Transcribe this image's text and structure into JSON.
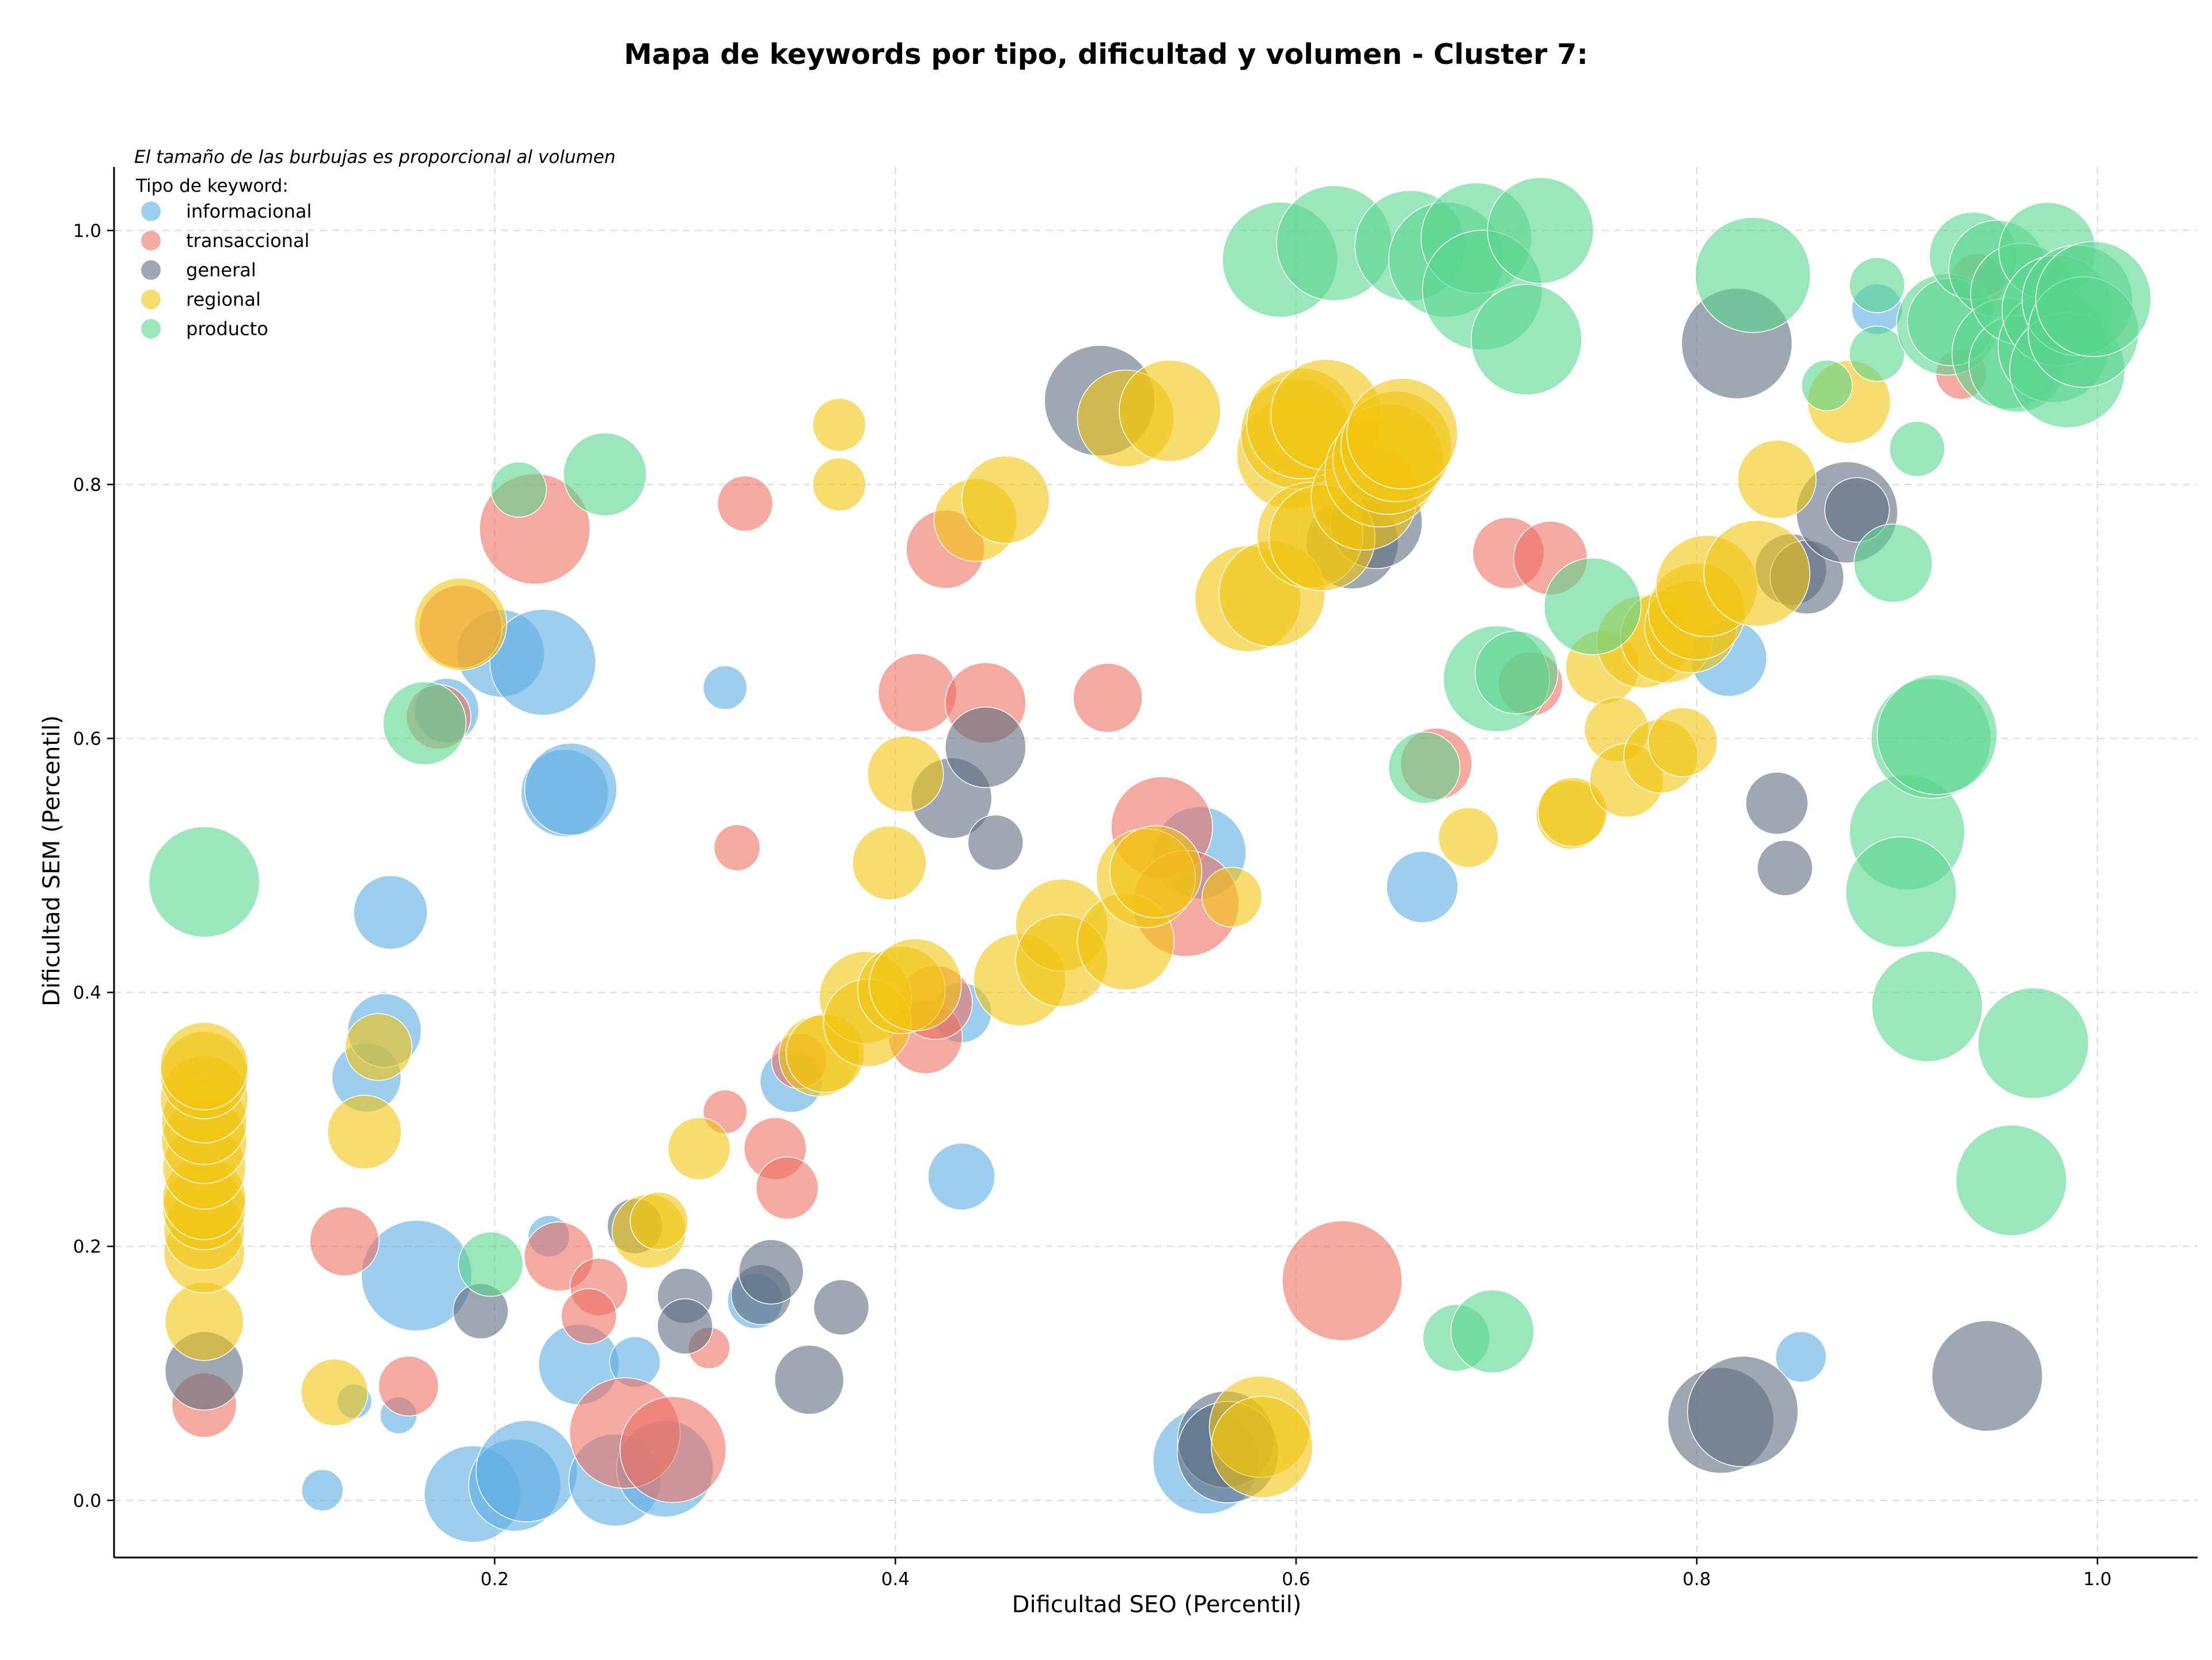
{
  "colors": {
    "informacional": "#5dade2",
    "transaccional": "#ec7063",
    "general": "#5d6d7e",
    "regional": "#f1c40f",
    "producto": "#58d68d"
  },
  "legend": {
    "note": "El tamaño de las burbujas es proporcional al volumen",
    "heading": "Tipo de keyword:",
    "items": [
      "informacional",
      "transaccional",
      "general",
      "regional",
      "producto"
    ]
  },
  "chart_data": {
    "type": "scatter",
    "bubble": true,
    "title": "Mapa de keywords por tipo, dificultad y volumen - Cluster 7:",
    "xlabel": "Dificultad SEO (Percentil)",
    "ylabel": "Dificultad SEM (Percentil)",
    "xlim": [
      0.01,
      1.05
    ],
    "ylim": [
      -0.045,
      1.05
    ],
    "xticks": [
      "0.2",
      "0.4",
      "0.6",
      "0.8",
      "1.0"
    ],
    "yticks": [
      "0.0",
      "0.2",
      "0.4",
      "0.6",
      "0.8",
      "1.0"
    ],
    "grid": true,
    "legend_position": "top-left",
    "size_note": "bubble size proportional to volume",
    "series": [
      {
        "name": "informacional",
        "points": [
          [
            0.114,
            0.008,
            18
          ],
          [
            0.13,
            0.078,
            15
          ],
          [
            0.152,
            0.067,
            16
          ],
          [
            0.161,
            0.177,
            48
          ],
          [
            0.148,
            0.463,
            32
          ],
          [
            0.136,
            0.333,
            30
          ],
          [
            0.145,
            0.37,
            32
          ],
          [
            0.176,
            0.622,
            28
          ],
          [
            0.203,
            0.667,
            38
          ],
          [
            0.224,
            0.66,
            46
          ],
          [
            0.235,
            0.557,
            38
          ],
          [
            0.238,
            0.56,
            40
          ],
          [
            0.189,
            0.005,
            42
          ],
          [
            0.21,
            0.012,
            40
          ],
          [
            0.216,
            0.023,
            44
          ],
          [
            0.227,
            0.208,
            18
          ],
          [
            0.242,
            0.107,
            35
          ],
          [
            0.26,
            0.016,
            40
          ],
          [
            0.27,
            0.109,
            22
          ],
          [
            0.285,
            0.025,
            42
          ],
          [
            0.315,
            0.64,
            19
          ],
          [
            0.33,
            0.157,
            24
          ],
          [
            0.348,
            0.33,
            27
          ],
          [
            0.433,
            0.384,
            26
          ],
          [
            0.433,
            0.255,
            29
          ],
          [
            0.552,
            0.51,
            40
          ],
          [
            0.555,
            0.031,
            46
          ],
          [
            0.663,
            0.483,
            31
          ],
          [
            0.816,
            0.663,
            33
          ],
          [
            0.852,
            0.113,
            22
          ],
          [
            0.89,
            0.938,
            22
          ]
        ]
      },
      {
        "name": "transaccional",
        "points": [
          [
            0.055,
            0.075,
            28
          ],
          [
            0.125,
            0.204,
            30
          ],
          [
            0.157,
            0.09,
            26
          ],
          [
            0.172,
            0.617,
            28
          ],
          [
            0.183,
            0.688,
            36
          ],
          [
            0.22,
            0.765,
            48
          ],
          [
            0.232,
            0.192,
            30
          ],
          [
            0.252,
            0.168,
            25
          ],
          [
            0.247,
            0.145,
            24
          ],
          [
            0.265,
            0.053,
            48
          ],
          [
            0.289,
            0.04,
            46
          ],
          [
            0.307,
            0.12,
            18
          ],
          [
            0.315,
            0.306,
            19
          ],
          [
            0.321,
            0.514,
            20
          ],
          [
            0.325,
            0.785,
            24
          ],
          [
            0.34,
            0.277,
            27
          ],
          [
            0.346,
            0.246,
            27
          ],
          [
            0.352,
            0.346,
            24
          ],
          [
            0.411,
            0.636,
            34
          ],
          [
            0.415,
            0.365,
            32
          ],
          [
            0.42,
            0.392,
            32
          ],
          [
            0.425,
            0.749,
            34
          ],
          [
            0.445,
            0.628,
            35
          ],
          [
            0.506,
            0.632,
            30
          ],
          [
            0.533,
            0.53,
            44
          ],
          [
            0.545,
            0.47,
            46
          ],
          [
            0.623,
            0.173,
            52
          ],
          [
            0.67,
            0.58,
            31
          ],
          [
            0.706,
            0.746,
            31
          ],
          [
            0.717,
            0.643,
            28
          ],
          [
            0.727,
            0.742,
            32
          ],
          [
            0.932,
            0.887,
            22
          ],
          [
            0.94,
            0.96,
            24
          ]
        ]
      },
      {
        "name": "general",
        "points": [
          [
            0.055,
            0.102,
            34
          ],
          [
            0.193,
            0.149,
            24
          ],
          [
            0.27,
            0.216,
            24
          ],
          [
            0.295,
            0.161,
            24
          ],
          [
            0.295,
            0.137,
            24
          ],
          [
            0.333,
            0.162,
            26
          ],
          [
            0.338,
            0.18,
            28
          ],
          [
            0.357,
            0.095,
            30
          ],
          [
            0.373,
            0.152,
            24
          ],
          [
            0.428,
            0.553,
            35
          ],
          [
            0.445,
            0.593,
            35
          ],
          [
            0.45,
            0.518,
            24
          ],
          [
            0.502,
            0.866,
            48
          ],
          [
            0.565,
            0.048,
            42
          ],
          [
            0.566,
            0.038,
            44
          ],
          [
            0.628,
            0.754,
            40
          ],
          [
            0.64,
            0.77,
            40
          ],
          [
            0.812,
            0.063,
            46
          ],
          [
            0.823,
            0.07,
            48
          ],
          [
            0.82,
            0.911,
            48
          ],
          [
            0.84,
            0.549,
            27
          ],
          [
            0.844,
            0.498,
            24
          ],
          [
            0.847,
            0.733,
            31
          ],
          [
            0.855,
            0.727,
            32
          ],
          [
            0.875,
            0.778,
            44
          ],
          [
            0.88,
            0.78,
            28
          ],
          [
            0.945,
            0.098,
            48
          ]
        ]
      },
      {
        "name": "regional",
        "points": [
          [
            0.055,
            0.141,
            34
          ],
          [
            0.055,
            0.195,
            35
          ],
          [
            0.055,
            0.213,
            35
          ],
          [
            0.055,
            0.23,
            36
          ],
          [
            0.055,
            0.238,
            36
          ],
          [
            0.055,
            0.262,
            36
          ],
          [
            0.055,
            0.283,
            37
          ],
          [
            0.055,
            0.298,
            37
          ],
          [
            0.055,
            0.316,
            38
          ],
          [
            0.055,
            0.335,
            38
          ],
          [
            0.055,
            0.342,
            38
          ],
          [
            0.12,
            0.085,
            29
          ],
          [
            0.135,
            0.29,
            32
          ],
          [
            0.142,
            0.357,
            29
          ],
          [
            0.183,
            0.69,
            40
          ],
          [
            0.277,
            0.212,
            32
          ],
          [
            0.282,
            0.22,
            25
          ],
          [
            0.302,
            0.277,
            27
          ],
          [
            0.362,
            0.35,
            35
          ],
          [
            0.365,
            0.352,
            34
          ],
          [
            0.372,
            0.847,
            23
          ],
          [
            0.372,
            0.8,
            23
          ],
          [
            0.385,
            0.396,
            40
          ],
          [
            0.386,
            0.376,
            38
          ],
          [
            0.397,
            0.502,
            32
          ],
          [
            0.405,
            0.572,
            33
          ],
          [
            0.403,
            0.402,
            38
          ],
          [
            0.41,
            0.406,
            40
          ],
          [
            0.44,
            0.772,
            36
          ],
          [
            0.455,
            0.788,
            38
          ],
          [
            0.462,
            0.41,
            40
          ],
          [
            0.483,
            0.453,
            40
          ],
          [
            0.483,
            0.425,
            40
          ],
          [
            0.515,
            0.852,
            42
          ],
          [
            0.515,
            0.44,
            42
          ],
          [
            0.525,
            0.49,
            43
          ],
          [
            0.53,
            0.495,
            40
          ],
          [
            0.537,
            0.858,
            44
          ],
          [
            0.568,
            0.475,
            26
          ],
          [
            0.576,
            0.71,
            46
          ],
          [
            0.588,
            0.714,
            46
          ],
          [
            0.582,
            0.058,
            44
          ],
          [
            0.583,
            0.042,
            44
          ],
          [
            0.598,
            0.824,
            48
          ],
          [
            0.6,
            0.84,
            48
          ],
          [
            0.603,
            0.848,
            48
          ],
          [
            0.615,
            0.855,
            48
          ],
          [
            0.607,
            0.76,
            46
          ],
          [
            0.613,
            0.758,
            46
          ],
          [
            0.634,
            0.79,
            46
          ],
          [
            0.642,
            0.81,
            48
          ],
          [
            0.646,
            0.82,
            48
          ],
          [
            0.65,
            0.83,
            48
          ],
          [
            0.653,
            0.84,
            48
          ],
          [
            0.686,
            0.522,
            26
          ],
          [
            0.737,
            0.54,
            30
          ],
          [
            0.738,
            0.542,
            30
          ],
          [
            0.753,
            0.656,
            32
          ],
          [
            0.76,
            0.607,
            28
          ],
          [
            0.765,
            0.567,
            32
          ],
          [
            0.773,
            0.676,
            40
          ],
          [
            0.785,
            0.68,
            40
          ],
          [
            0.782,
            0.586,
            32
          ],
          [
            0.793,
            0.597,
            30
          ],
          [
            0.797,
            0.688,
            40
          ],
          [
            0.8,
            0.7,
            42
          ],
          [
            0.805,
            0.72,
            44
          ],
          [
            0.83,
            0.73,
            46
          ],
          [
            0.84,
            0.804,
            34
          ],
          [
            0.876,
            0.865,
            36
          ]
        ]
      },
      {
        "name": "producto",
        "points": [
          [
            0.055,
            0.487,
            48
          ],
          [
            0.165,
            0.612,
            36
          ],
          [
            0.198,
            0.186,
            28
          ],
          [
            0.212,
            0.796,
            24
          ],
          [
            0.255,
            0.808,
            36
          ],
          [
            0.592,
            0.977,
            50
          ],
          [
            0.619,
            0.99,
            50
          ],
          [
            0.657,
            0.988,
            48
          ],
          [
            0.675,
            0.977,
            50
          ],
          [
            0.69,
            0.994,
            48
          ],
          [
            0.693,
            0.953,
            52
          ],
          [
            0.722,
            1.0,
            46
          ],
          [
            0.715,
            0.914,
            48
          ],
          [
            0.7,
            0.647,
            46
          ],
          [
            0.71,
            0.652,
            36
          ],
          [
            0.748,
            0.704,
            42
          ],
          [
            0.664,
            0.577,
            31
          ],
          [
            0.68,
            0.128,
            29
          ],
          [
            0.698,
            0.133,
            36
          ],
          [
            0.828,
            0.965,
            50
          ],
          [
            0.865,
            0.878,
            22
          ],
          [
            0.89,
            0.957,
            24
          ],
          [
            0.89,
            0.903,
            24
          ],
          [
            0.898,
            0.738,
            34
          ],
          [
            0.91,
            0.828,
            24
          ],
          [
            0.905,
            0.526,
            50
          ],
          [
            0.902,
            0.479,
            48
          ],
          [
            0.917,
            0.6,
            52
          ],
          [
            0.92,
            0.603,
            52
          ],
          [
            0.915,
            0.389,
            48
          ],
          [
            0.925,
            0.926,
            44
          ],
          [
            0.927,
            0.928,
            38
          ],
          [
            0.938,
            0.98,
            38
          ],
          [
            0.95,
            0.97,
            42
          ],
          [
            0.955,
            0.903,
            48
          ],
          [
            0.96,
            0.895,
            42
          ],
          [
            0.962,
            0.95,
            44
          ],
          [
            0.968,
            0.36,
            48
          ],
          [
            0.957,
            0.252,
            48
          ],
          [
            0.975,
            0.984,
            42
          ],
          [
            0.978,
            0.908,
            48
          ],
          [
            0.98,
            0.937,
            48
          ],
          [
            0.985,
            0.89,
            50
          ],
          [
            0.99,
            0.945,
            48
          ],
          [
            0.993,
            0.92,
            48
          ],
          [
            0.998,
            0.946,
            50
          ]
        ]
      }
    ]
  }
}
